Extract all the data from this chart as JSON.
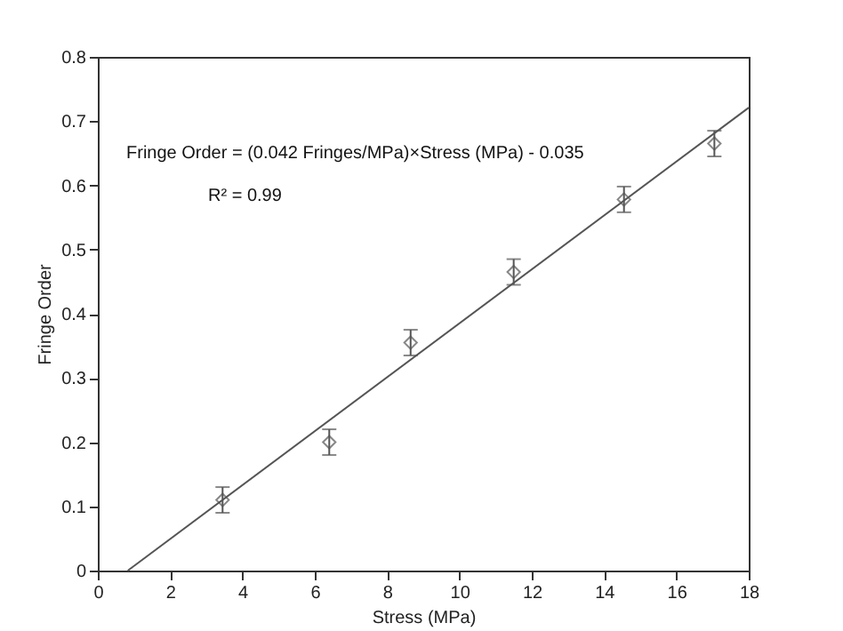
{
  "chart_data": {
    "type": "scatter",
    "xlabel": "Stress (MPa)",
    "ylabel": "Fringe Order",
    "annotations": [
      "Fringe Order = (0.042 Fringes/MPa)×Stress (MPa) - 0.035",
      "R² = 0.99"
    ],
    "series": [
      {
        "type": "scatter",
        "color": "#555555",
        "marker": "diamond",
        "x": [
          3.45,
          6.4,
          8.65,
          11.5,
          14.55,
          17.05
        ],
        "values": [
          0.11,
          0.2,
          0.355,
          0.465,
          0.578,
          0.665
        ],
        "errors": [
          0.02,
          0.02,
          0.02,
          0.02,
          0.02,
          0.02
        ]
      },
      {
        "type": "line",
        "color": "#555555",
        "marker": "none",
        "x": [
          0.83,
          18
        ],
        "values": [
          0,
          0.721
        ]
      }
    ],
    "xlim": [
      0,
      18
    ],
    "xticks": [
      0,
      2,
      4,
      6,
      8,
      10,
      12,
      14,
      16,
      18
    ],
    "ylim": [
      0,
      0.8
    ],
    "yticks": [
      0,
      0.1,
      0.2,
      0.3,
      0.4,
      0.5,
      0.6,
      0.7,
      0.8
    ],
    "grid": false
  }
}
